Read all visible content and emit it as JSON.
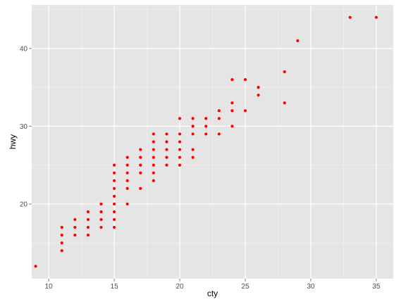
{
  "chart_data": {
    "type": "scatter",
    "xlabel": "cty",
    "ylabel": "hwy",
    "xlim": [
      8.7,
      36.3
    ],
    "ylim": [
      10.4,
      45.6
    ],
    "x_ticks": [
      10,
      15,
      20,
      25,
      30,
      35
    ],
    "y_ticks": [
      20,
      30,
      40
    ],
    "grid": true,
    "legend": "none",
    "colors": {
      "panel_background": "#e5e5e5",
      "grid_major": "#ffffff",
      "grid_minor": "#f2f2f2",
      "point": "#ff0000"
    },
    "series": [
      {
        "points": [
          [
            9,
            12
          ],
          [
            11,
            14
          ],
          [
            11,
            15
          ],
          [
            11,
            16
          ],
          [
            11,
            17
          ],
          [
            12,
            16
          ],
          [
            12,
            17
          ],
          [
            12,
            18
          ],
          [
            13,
            16
          ],
          [
            13,
            17
          ],
          [
            13,
            18
          ],
          [
            13,
            19
          ],
          [
            14,
            17
          ],
          [
            14,
            18
          ],
          [
            14,
            19
          ],
          [
            14,
            20
          ],
          [
            15,
            17
          ],
          [
            15,
            18
          ],
          [
            15,
            19
          ],
          [
            15,
            20
          ],
          [
            15,
            21
          ],
          [
            15,
            22
          ],
          [
            15,
            23
          ],
          [
            15,
            24
          ],
          [
            15,
            25
          ],
          [
            16,
            20
          ],
          [
            16,
            22
          ],
          [
            16,
            23
          ],
          [
            16,
            24
          ],
          [
            16,
            25
          ],
          [
            16,
            26
          ],
          [
            17,
            22
          ],
          [
            17,
            24
          ],
          [
            17,
            25
          ],
          [
            17,
            26
          ],
          [
            17,
            27
          ],
          [
            18,
            23
          ],
          [
            18,
            24
          ],
          [
            18,
            25
          ],
          [
            18,
            26
          ],
          [
            18,
            27
          ],
          [
            18,
            28
          ],
          [
            18,
            29
          ],
          [
            19,
            25
          ],
          [
            19,
            26
          ],
          [
            19,
            27
          ],
          [
            19,
            28
          ],
          [
            19,
            29
          ],
          [
            20,
            25
          ],
          [
            20,
            26
          ],
          [
            20,
            27
          ],
          [
            20,
            28
          ],
          [
            20,
            29
          ],
          [
            20,
            31
          ],
          [
            21,
            26
          ],
          [
            21,
            27
          ],
          [
            21,
            29
          ],
          [
            21,
            30
          ],
          [
            21,
            31
          ],
          [
            22,
            29
          ],
          [
            22,
            30
          ],
          [
            22,
            31
          ],
          [
            23,
            29
          ],
          [
            23,
            31
          ],
          [
            23,
            32
          ],
          [
            24,
            30
          ],
          [
            24,
            32
          ],
          [
            24,
            33
          ],
          [
            24,
            36
          ],
          [
            25,
            32
          ],
          [
            25,
            36
          ],
          [
            26,
            34
          ],
          [
            26,
            35
          ],
          [
            28,
            33
          ],
          [
            28,
            37
          ],
          [
            29,
            41
          ],
          [
            33,
            44
          ],
          [
            35,
            44
          ]
        ]
      }
    ]
  }
}
